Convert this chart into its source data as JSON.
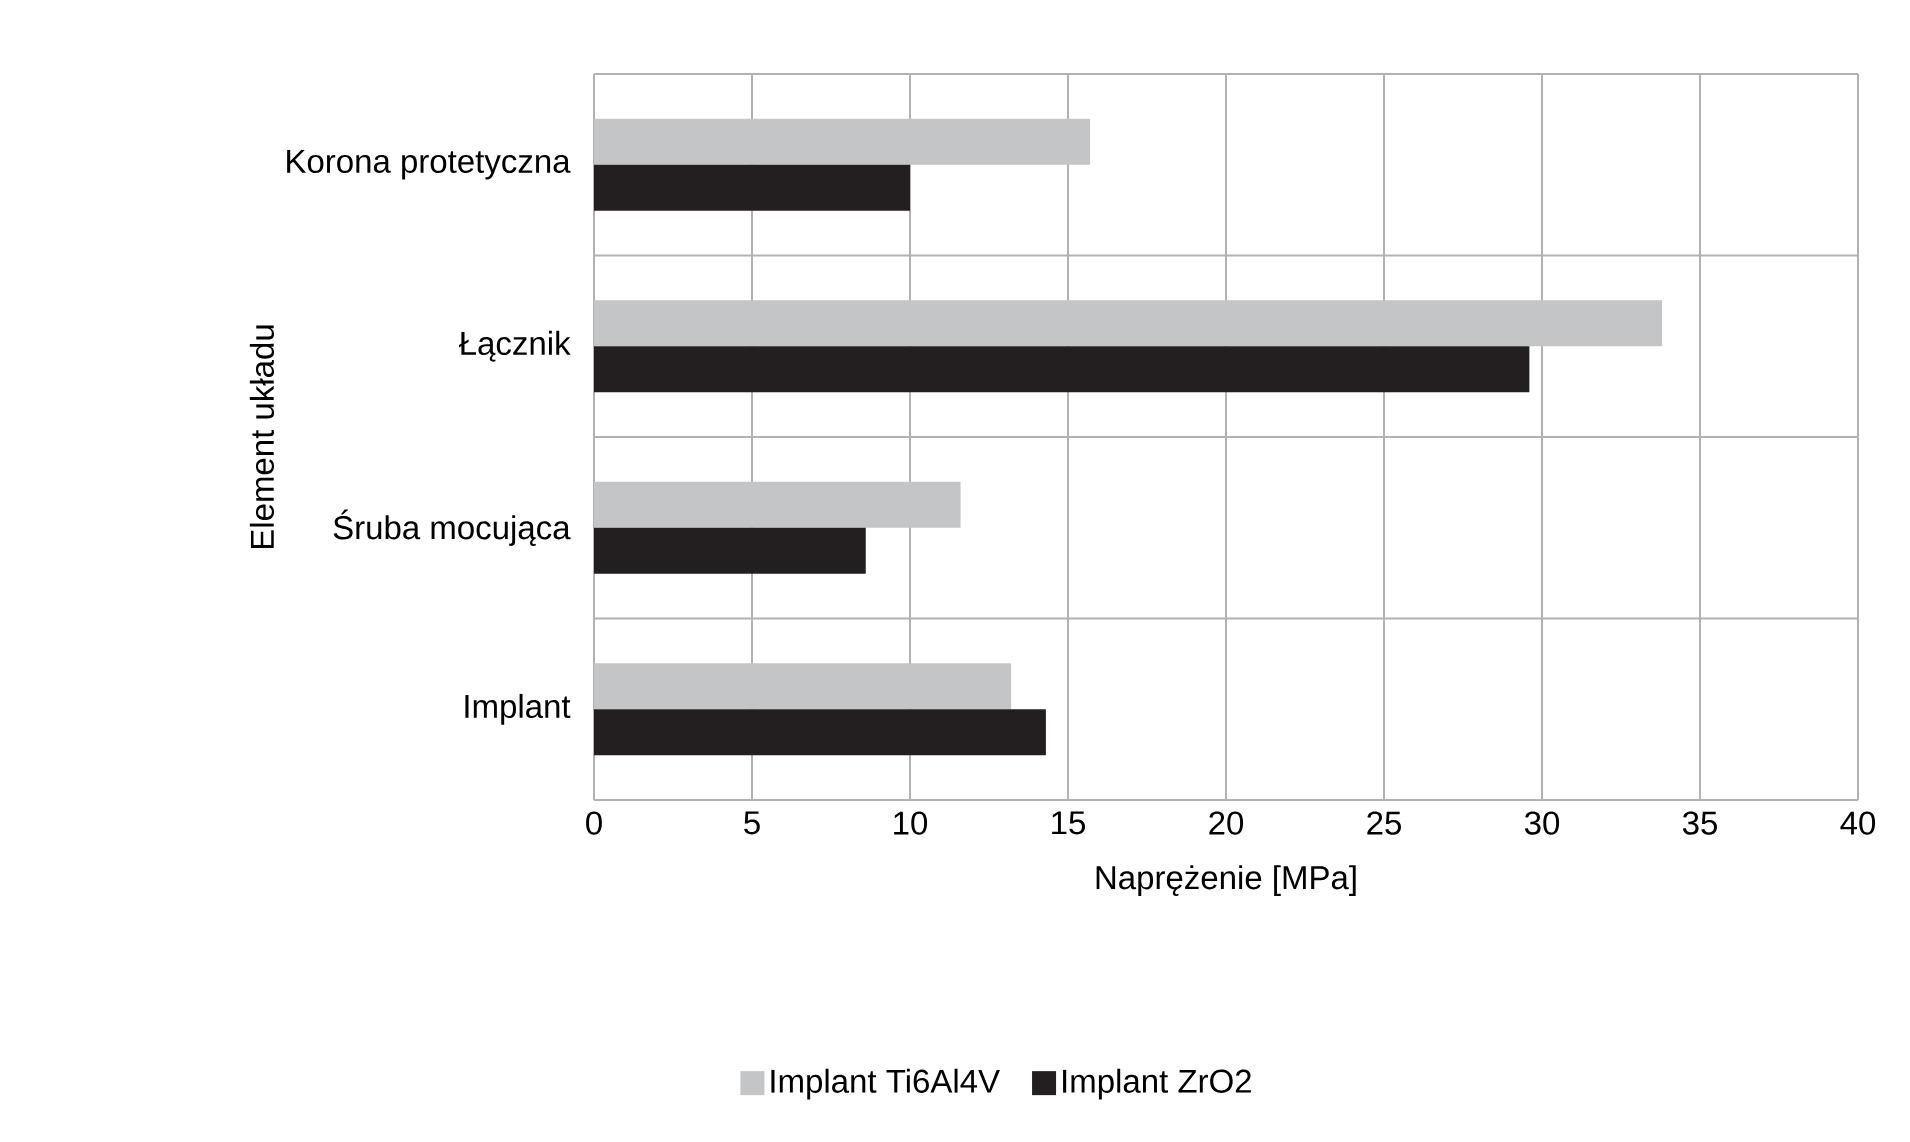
{
  "chart_data": {
    "type": "bar",
    "orientation": "horizontal",
    "categories": [
      "Korona protetyczna",
      "Łącznik",
      "Śruba mocująca",
      "Implant"
    ],
    "series": [
      {
        "name": "Implant Ti6Al4V",
        "color": "#c4c5c7",
        "values": [
          15.7,
          33.8,
          11.6,
          13.2
        ]
      },
      {
        "name": "Implant ZrO2",
        "color": "#231f20",
        "values": [
          10.0,
          29.6,
          8.6,
          14.3
        ]
      }
    ],
    "xlabel": "Naprężenie [MPa]",
    "ylabel": "Element układu",
    "xlim": [
      0,
      40
    ],
    "xticks": [
      0,
      5,
      10,
      15,
      20,
      25,
      30,
      35,
      40
    ],
    "grid": true,
    "legend": "bottom"
  }
}
